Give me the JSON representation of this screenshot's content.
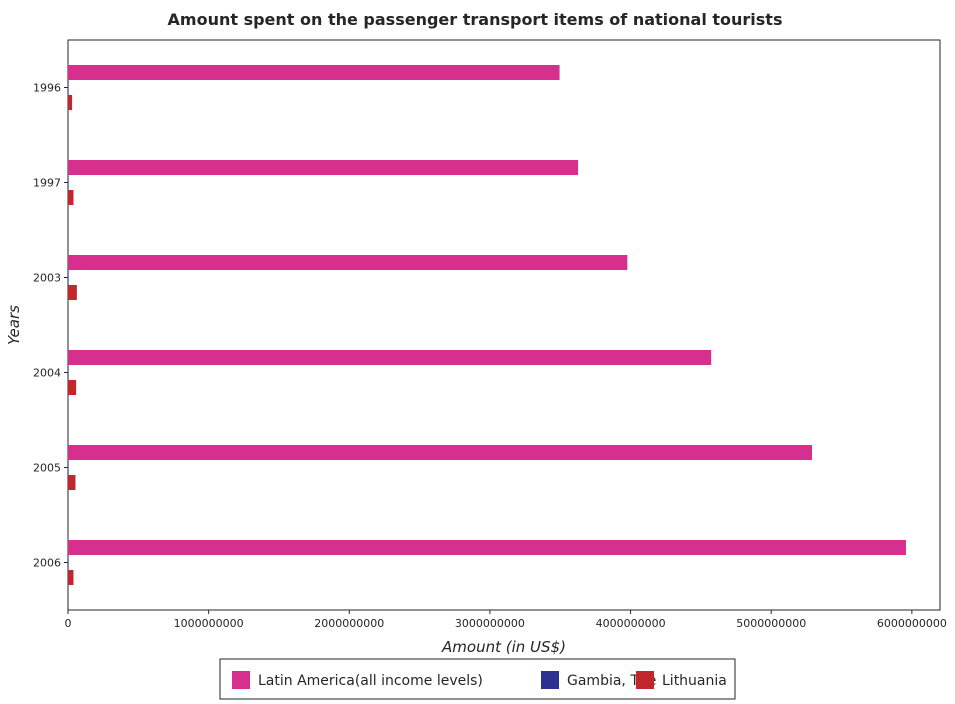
{
  "chart_data": {
    "type": "bar",
    "orientation": "horizontal",
    "title": "Amount spent on the passenger transport items of national tourists",
    "xlabel": "Amount (in US$)",
    "ylabel": "Years",
    "categories": [
      "1996",
      "1997",
      "2003",
      "2004",
      "2005",
      "2006"
    ],
    "xlim": [
      0,
      6200000000
    ],
    "xticks": [
      0,
      1000000000,
      2000000000,
      3000000000,
      4000000000,
      5000000000,
      6000000000
    ],
    "xtick_labels": [
      "0",
      "1000000000",
      "2000000000",
      "3000000000",
      "4000000000",
      "5000000000",
      "6000000000"
    ],
    "grid": false,
    "legend_position": "bottom",
    "series": [
      {
        "name": "Latin America(all income levels)",
        "color": "#d62f8d",
        "values": [
          3495000000,
          3627000000,
          3977000000,
          4573000000,
          5290000000,
          5958000000
        ]
      },
      {
        "name": "Gambia, The",
        "color": "#2e3192",
        "values": [
          1000000,
          1000000,
          1000000,
          1000000,
          1000000,
          1000000
        ]
      },
      {
        "name": "Lithuania",
        "color": "#c1272d",
        "values": [
          29000000,
          39000000,
          63000000,
          58000000,
          53000000,
          39000000
        ]
      }
    ]
  }
}
